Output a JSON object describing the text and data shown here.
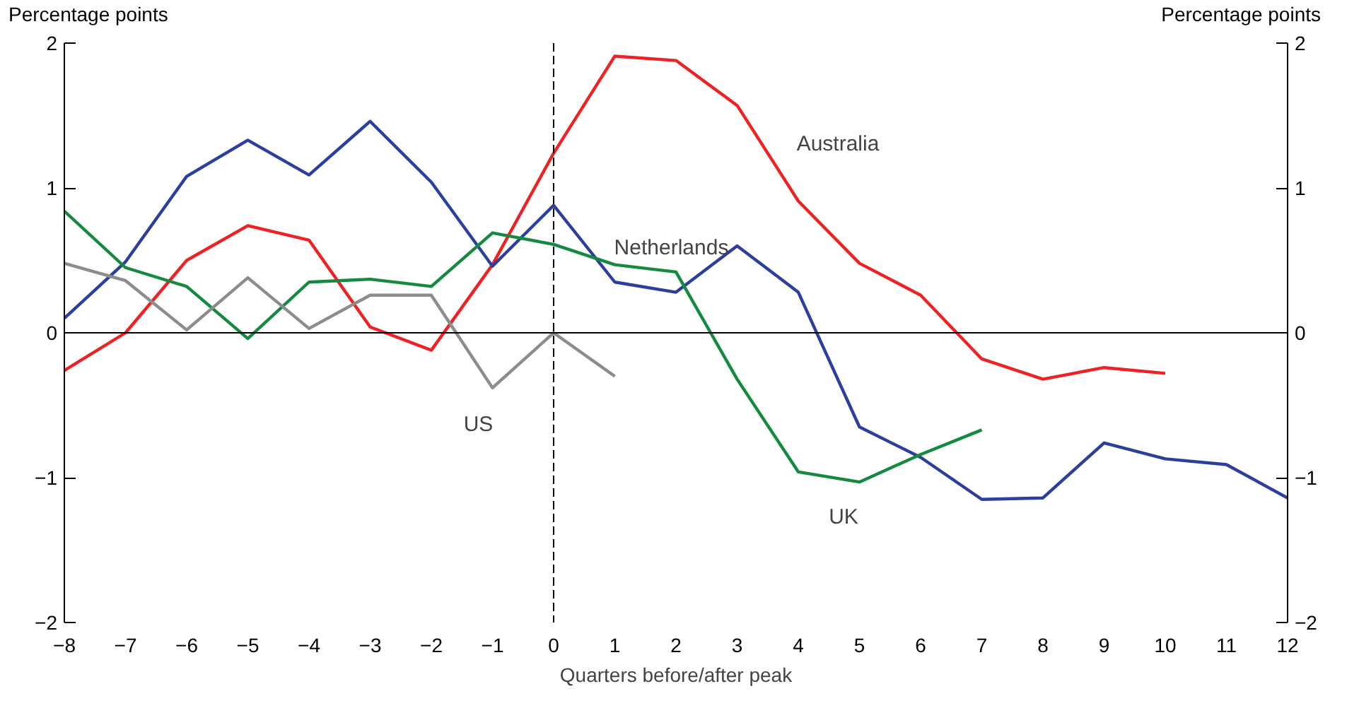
{
  "chart_data": {
    "type": "line",
    "xlabel": "Quarters before/after peak",
    "ylabel": "Percentage points",
    "y2label": "Percentage points",
    "x": [
      -8,
      -7,
      -6,
      -5,
      -4,
      -3,
      -2,
      -1,
      0,
      1,
      2,
      3,
      4,
      5,
      6,
      7,
      8,
      9,
      10,
      11,
      12
    ],
    "xlim": [
      -8,
      12
    ],
    "xticks": [
      -8,
      -7,
      -6,
      -5,
      -4,
      -3,
      -2,
      -1,
      0,
      1,
      2,
      3,
      4,
      5,
      6,
      7,
      8,
      9,
      10,
      11,
      12
    ],
    "ylim": [
      -2,
      2
    ],
    "yticks": [
      -2,
      -1,
      0,
      1,
      2
    ],
    "y2lim": [
      -2,
      2
    ],
    "y2ticks": [
      -2,
      -1,
      0,
      1,
      2
    ],
    "grid": false,
    "line_style": "solid",
    "marker": "none",
    "series": [
      {
        "name": "Australia",
        "color": "#ee2224",
        "values": [
          -0.26,
          0.0,
          0.5,
          0.74,
          0.64,
          0.04,
          -0.12,
          0.47,
          1.24,
          1.91,
          1.88,
          1.57,
          0.91,
          0.48,
          0.26,
          -0.18,
          -0.32,
          -0.24,
          -0.28,
          null,
          null
        ]
      },
      {
        "name": "Netherlands",
        "color": "#2b3f9e",
        "values": [
          0.1,
          0.49,
          1.08,
          1.33,
          1.09,
          1.46,
          1.04,
          0.46,
          0.88,
          0.35,
          0.28,
          0.6,
          0.28,
          -0.65,
          -0.86,
          -1.15,
          -1.14,
          -0.76,
          -0.87,
          -0.91,
          -1.14
        ]
      },
      {
        "name": "UK",
        "color": "#138a3e",
        "values": [
          0.84,
          0.45,
          0.32,
          -0.04,
          0.35,
          0.37,
          0.32,
          0.69,
          0.61,
          0.47,
          0.42,
          -0.32,
          -0.96,
          -1.03,
          -0.84,
          -0.67,
          null,
          null,
          null,
          null,
          null
        ]
      },
      {
        "name": "US",
        "color": "#8c8c8c",
        "values": [
          0.48,
          0.36,
          0.02,
          0.38,
          0.03,
          0.26,
          0.26,
          -0.38,
          0.0,
          -0.3,
          null,
          null,
          null,
          null,
          null,
          null,
          null,
          null,
          null,
          null,
          null
        ]
      }
    ],
    "ref_lines": [
      {
        "axis": "x",
        "value": 0,
        "line_style": "dashed",
        "color": "#000000"
      },
      {
        "axis": "y",
        "value": 0,
        "line_style": "solid",
        "color": "#000000"
      }
    ]
  }
}
